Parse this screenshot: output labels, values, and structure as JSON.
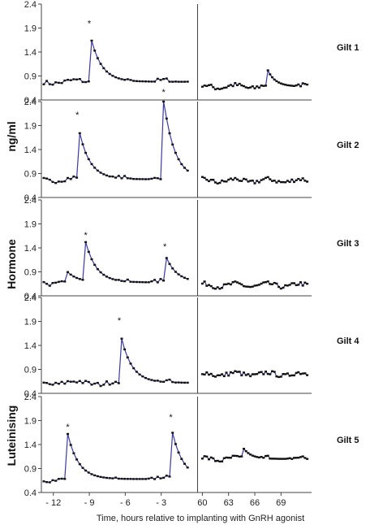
{
  "chart_data": {
    "type": "line",
    "ylabel_parts": [
      "Luteinising",
      "Hormone",
      "ng/ml"
    ],
    "xlabel": "Time, hours relative to implanting with GnRH agonist",
    "ylim": [
      0.4,
      2.4
    ],
    "yticks": [
      "0.4",
      "0.9",
      "1.4",
      "1.9",
      "2.4"
    ],
    "x_left_range": [
      -13,
      0
    ],
    "x_right_range": [
      59.5,
      72.5
    ],
    "x_tick_values_left": [
      -12,
      -9,
      -6,
      -3
    ],
    "x_tick_values_right": [
      60,
      63,
      66,
      69
    ],
    "x_tick_labels_left": [
      "- 12",
      "- 9",
      "- 6",
      "- 3"
    ],
    "x_tick_labels_right": [
      "60",
      "63",
      "66",
      "69"
    ],
    "panels": [
      {
        "label": "Gilt 1",
        "peaks": [
          {
            "x": -9.0,
            "y": 1.85,
            "mark": "*"
          }
        ],
        "secondary_peaks": [
          {
            "x": 67.3,
            "y": 1.1
          }
        ],
        "baseline_left": 0.78,
        "baseline_right": 0.68
      },
      {
        "label": "Gilt 2",
        "peaks": [
          {
            "x": -10.0,
            "y": 1.98,
            "mark": "*"
          },
          {
            "x": -2.8,
            "y": 2.45,
            "mark": "*"
          }
        ],
        "secondary_peaks": [],
        "baseline_left": 0.78,
        "baseline_right": 0.75
      },
      {
        "label": "Gilt 3",
        "peaks": [
          {
            "x": -9.3,
            "y": 1.52,
            "mark": "*"
          },
          {
            "x": -2.7,
            "y": 1.28,
            "mark": "*"
          }
        ],
        "secondary_peaks": [
          {
            "x": -10.9,
            "y": 0.92
          }
        ],
        "baseline_left": 0.68,
        "baseline_right": 0.62
      },
      {
        "label": "Gilt 4",
        "peaks": [
          {
            "x": -6.5,
            "y": 1.77,
            "mark": "*"
          }
        ],
        "secondary_peaks": [],
        "baseline_left": 0.62,
        "baseline_right": 0.8
      },
      {
        "label": "Gilt 5",
        "peaks": [
          {
            "x": -10.8,
            "y": 1.62,
            "mark": "*"
          },
          {
            "x": -2.2,
            "y": 1.82,
            "mark": "*"
          }
        ],
        "secondary_peaks": [
          {
            "x": 64.6,
            "y": 1.35
          }
        ],
        "baseline_left": 0.68,
        "baseline_right": 1.1
      }
    ]
  }
}
